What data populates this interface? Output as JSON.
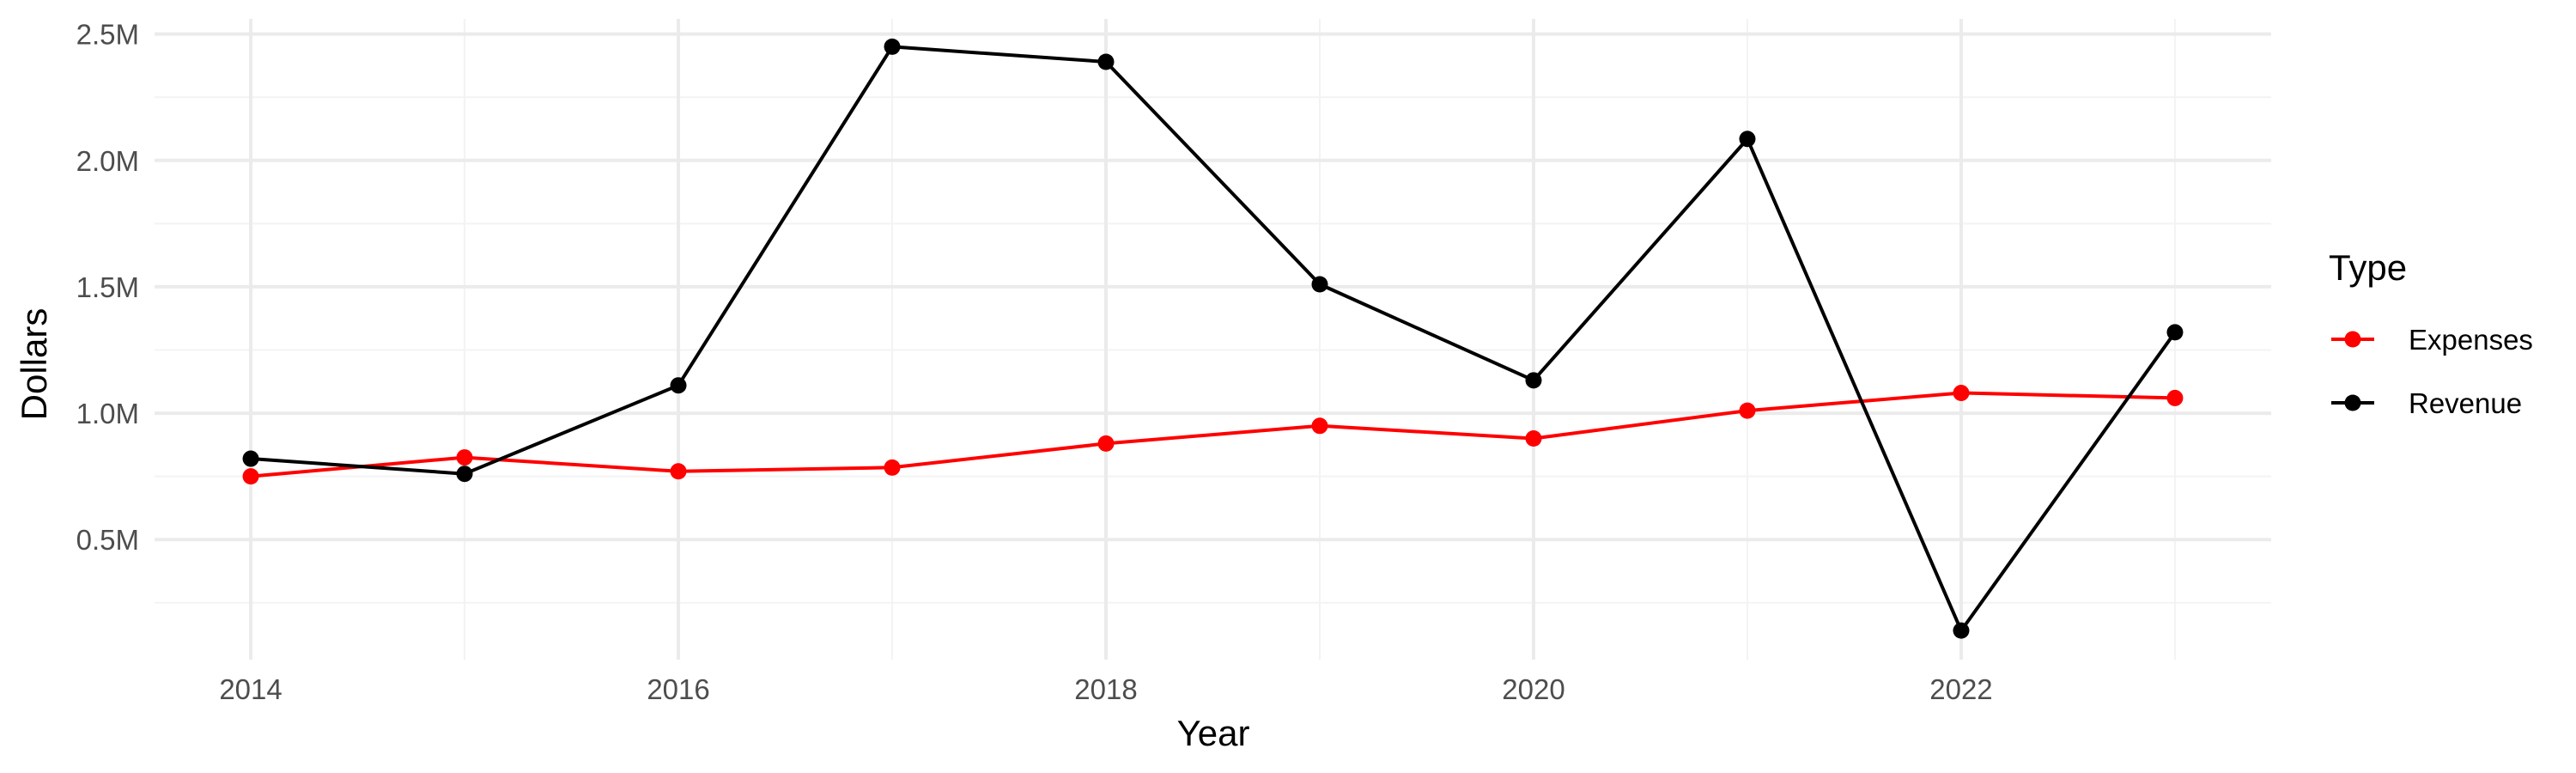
{
  "chart_data": {
    "type": "line",
    "xlabel": "Year",
    "ylabel": "Dollars",
    "x": [
      2014,
      2015,
      2016,
      2017,
      2018,
      2019,
      2020,
      2021,
      2022,
      2023
    ],
    "xlim": [
      2013.55,
      2023.45
    ],
    "ylim": [
      25000,
      2560000
    ],
    "x_ticks": [
      2014,
      2016,
      2018,
      2020,
      2022
    ],
    "y_ticks": [
      500000,
      1000000,
      1500000,
      2000000,
      2500000
    ],
    "x_tick_labels": [
      "2014",
      "2016",
      "2018",
      "2020",
      "2022"
    ],
    "y_tick_labels": [
      "0.5M",
      "1.0M",
      "1.5M",
      "2.0M",
      "2.5M"
    ],
    "grid": true,
    "legend": {
      "title": "Type",
      "position": "right"
    },
    "series": [
      {
        "name": "Expenses",
        "color": "#ff0000",
        "values": [
          750000,
          825000,
          770000,
          785000,
          880000,
          950000,
          900000,
          1010000,
          1080000,
          1060000
        ]
      },
      {
        "name": "Revenue",
        "color": "#000000",
        "values": [
          820000,
          760000,
          1110000,
          2450000,
          2390000,
          1510000,
          1130000,
          2085000,
          140000,
          1320000
        ]
      }
    ]
  }
}
